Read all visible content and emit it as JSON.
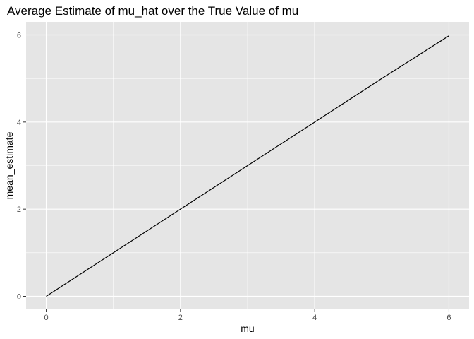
{
  "chart_data": {
    "type": "line",
    "title": "Average Estimate of mu_hat over the True Value of mu",
    "xlabel": "mu",
    "ylabel": "mean_estimate",
    "xlim": [
      -0.3,
      6.3
    ],
    "ylim": [
      -0.3,
      6.3
    ],
    "x_ticks": [
      0,
      2,
      4,
      6
    ],
    "y_ticks": [
      0,
      2,
      4,
      6
    ],
    "x_minor": [
      1,
      3,
      5
    ],
    "y_minor": [
      1,
      3,
      5
    ],
    "grid": true,
    "colors": {
      "panel": "#e5e5e5",
      "grid": "#ffffff",
      "line": "#000000",
      "tick": "#333333"
    },
    "series": [
      {
        "x": [
          0,
          1,
          2,
          3,
          4,
          5,
          6
        ],
        "values": [
          0.0,
          1.0,
          2.0,
          3.0,
          4.0,
          5.0,
          5.98
        ]
      }
    ]
  }
}
